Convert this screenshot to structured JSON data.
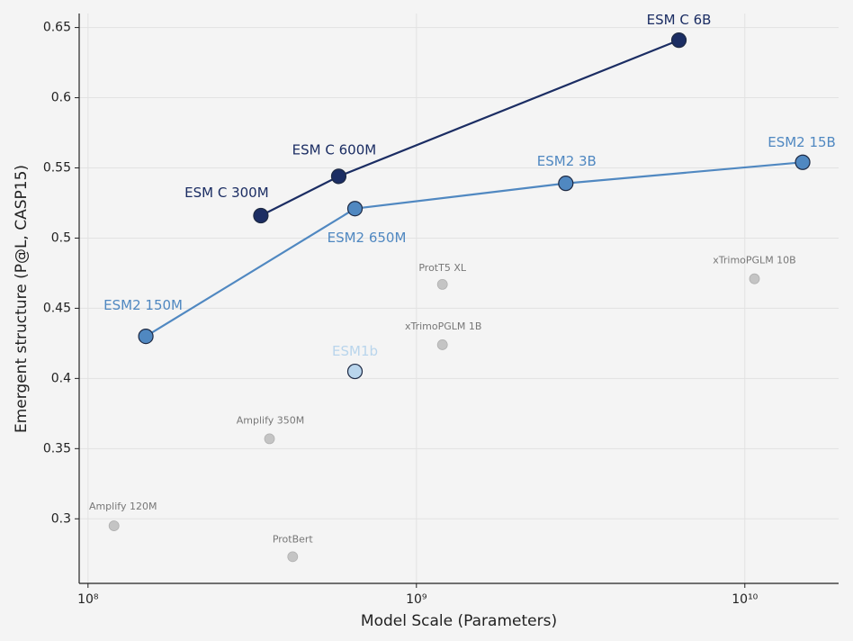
{
  "chart_data": {
    "type": "scatter",
    "x_label": "Model Scale (Parameters)",
    "y_label": "Emergent structure (P@L, CASP15)",
    "xscale": "log",
    "xlim": [
      94000000,
      19300000000
    ],
    "ylim": [
      0.254,
      0.66
    ],
    "xticks": [
      {
        "value": 100000000,
        "label": "10⁸"
      },
      {
        "value": 1000000000,
        "label": "10⁹"
      },
      {
        "value": 10000000000,
        "label": "10¹⁰"
      }
    ],
    "yticks": [
      0.3,
      0.35,
      0.4,
      0.45,
      0.5,
      0.55,
      0.6,
      0.65
    ],
    "grid": true,
    "series": [
      {
        "color": "#1b2d63",
        "line": true,
        "x": [
          336000000,
          580000000,
          6300000000
        ],
        "values": [
          0.516,
          0.544,
          0.641
        ],
        "point_labels": [
          "ESM C 300M",
          "ESM C 600M",
          "ESM C 6B"
        ]
      },
      {
        "color": "#5088c1",
        "line": true,
        "x": [
          150000000,
          650000000,
          2850000000,
          15000000000
        ],
        "values": [
          0.43,
          0.521,
          0.539,
          0.554
        ],
        "point_labels": [
          "ESM2 150M",
          "ESM2 650M",
          "ESM2 3B",
          "ESM2 15B"
        ]
      },
      {
        "color": "#b9d5ec",
        "line": false,
        "x": [
          650000000
        ],
        "values": [
          0.405
        ],
        "point_labels": [
          "ESM1b"
        ]
      },
      {
        "color": "#c4c4c4",
        "line": false,
        "x": [
          120000000,
          357000000,
          420000000,
          1200000000,
          1200000000,
          10700000000
        ],
        "values": [
          0.295,
          0.357,
          0.273,
          0.467,
          0.424,
          0.471
        ],
        "point_labels": [
          "Amplify 120M",
          "Amplify 350M",
          "ProtBert",
          "ProtT5 XL",
          "xTrimoPGLM 1B",
          "xTrimoPGLM 10B"
        ]
      }
    ]
  }
}
